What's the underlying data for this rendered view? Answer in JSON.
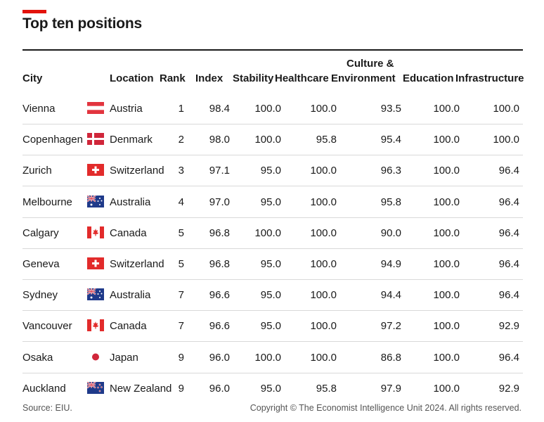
{
  "title": "Top ten positions",
  "headers": {
    "city": "City",
    "location": "Location",
    "rank": "Rank",
    "index": "Index",
    "stability": "Stability",
    "healthcare": "Healthcare",
    "culture_line1": "Culture &",
    "culture_line2": "Environment",
    "education": "Education",
    "infrastructure": "Infrastructure"
  },
  "rows": [
    {
      "city": "Vienna",
      "flag": "austria-flag-icon",
      "location": "Austria",
      "rank": "1",
      "index": "98.4",
      "stability": "100.0",
      "healthcare": "100.0",
      "culture": "93.5",
      "education": "100.0",
      "infrastructure": "100.0"
    },
    {
      "city": "Copenhagen",
      "flag": "denmark-flag-icon",
      "location": "Denmark",
      "rank": "2",
      "index": "98.0",
      "stability": "100.0",
      "healthcare": "95.8",
      "culture": "95.4",
      "education": "100.0",
      "infrastructure": "100.0"
    },
    {
      "city": "Zurich",
      "flag": "switzerland-flag-icon",
      "location": "Switzerland",
      "rank": "3",
      "index": "97.1",
      "stability": "95.0",
      "healthcare": "100.0",
      "culture": "96.3",
      "education": "100.0",
      "infrastructure": "96.4"
    },
    {
      "city": "Melbourne",
      "flag": "australia-flag-icon",
      "location": "Australia",
      "rank": "4",
      "index": "97.0",
      "stability": "95.0",
      "healthcare": "100.0",
      "culture": "95.8",
      "education": "100.0",
      "infrastructure": "96.4"
    },
    {
      "city": "Calgary",
      "flag": "canada-flag-icon",
      "location": "Canada",
      "rank": "5",
      "index": "96.8",
      "stability": "100.0",
      "healthcare": "100.0",
      "culture": "90.0",
      "education": "100.0",
      "infrastructure": "96.4"
    },
    {
      "city": "Geneva",
      "flag": "switzerland-flag-icon",
      "location": "Switzerland",
      "rank": "5",
      "index": "96.8",
      "stability": "95.0",
      "healthcare": "100.0",
      "culture": "94.9",
      "education": "100.0",
      "infrastructure": "96.4"
    },
    {
      "city": "Sydney",
      "flag": "australia-flag-icon",
      "location": "Australia",
      "rank": "7",
      "index": "96.6",
      "stability": "95.0",
      "healthcare": "100.0",
      "culture": "94.4",
      "education": "100.0",
      "infrastructure": "96.4"
    },
    {
      "city": "Vancouver",
      "flag": "canada-flag-icon",
      "location": "Canada",
      "rank": "7",
      "index": "96.6",
      "stability": "95.0",
      "healthcare": "100.0",
      "culture": "97.2",
      "education": "100.0",
      "infrastructure": "92.9"
    },
    {
      "city": "Osaka",
      "flag": "japan-flag-icon",
      "location": "Japan",
      "rank": "9",
      "index": "96.0",
      "stability": "100.0",
      "healthcare": "100.0",
      "culture": "86.8",
      "education": "100.0",
      "infrastructure": "96.4"
    },
    {
      "city": "Auckland",
      "flag": "new-zealand-flag-icon",
      "location": "New Zealand",
      "rank": "9",
      "index": "96.0",
      "stability": "95.0",
      "healthcare": "95.8",
      "culture": "97.9",
      "education": "100.0",
      "infrastructure": "92.9"
    }
  ],
  "source": "Source: EIU.",
  "copyright": "Copyright © The Economist Intelligence Unit 2024. All rights reserved.",
  "colors": {
    "accent": "#e3120b",
    "text": "#1a1a1a",
    "rule": "#d9d9d9"
  }
}
